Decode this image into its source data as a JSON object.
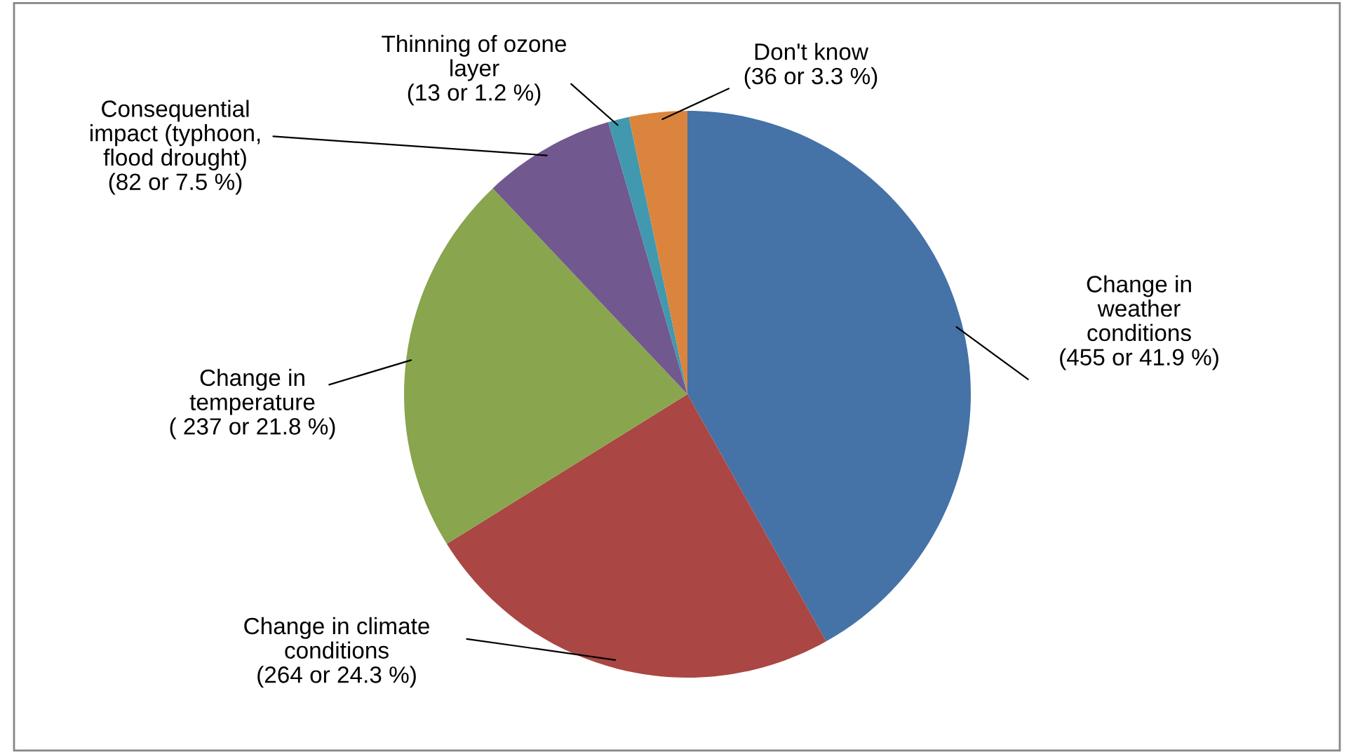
{
  "chart_data": {
    "type": "pie",
    "categories": [
      "Change in\nweather\nconditions",
      "Change in climate\nconditions",
      "Change in\ntemperature",
      "Consequential\nimpact (typhoon,\nflood drought)",
      "Thinning of ozone\nlayer",
      "Don't know"
    ],
    "values": [
      455,
      264,
      237,
      82,
      13,
      36
    ],
    "value_labels": [
      "(455 or 41.9 %)",
      "(264 or 24.3 %)",
      "( 237 or 21.8 %)",
      "(82 or 7.5 %)",
      "(13 or 1.2 %)",
      "(36 or 3.3 %)"
    ],
    "colors": [
      "#4572a7",
      "#aa4643",
      "#89a54e",
      "#71588f",
      "#4198af",
      "#db843d"
    ]
  }
}
